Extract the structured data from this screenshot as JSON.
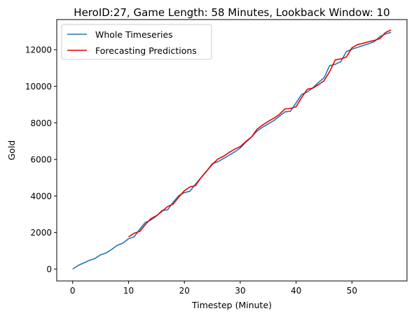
{
  "chart_data": {
    "type": "line",
    "title": "HeroID:27, Game Length: 58 Minutes, Lookback Window: 10",
    "xlabel": "Timestep (Minute)",
    "ylabel": "Gold",
    "xlim": [
      -2.85,
      59.85
    ],
    "ylim": [
      -650,
      13650
    ],
    "xticks": [
      0,
      10,
      20,
      30,
      40,
      50
    ],
    "yticks": [
      0,
      2000,
      4000,
      6000,
      8000,
      10000,
      12000
    ],
    "grid": false,
    "legend_position": "top-left",
    "series": [
      {
        "name": "Whole Timeseries",
        "color": "#1f77b4",
        "x": [
          0,
          1,
          2,
          3,
          4,
          5,
          6,
          7,
          8,
          9,
          10,
          11,
          12,
          13,
          14,
          15,
          16,
          17,
          18,
          19,
          20,
          21,
          22,
          23,
          24,
          25,
          26,
          27,
          28,
          29,
          30,
          31,
          32,
          33,
          34,
          35,
          36,
          37,
          38,
          39,
          40,
          41,
          42,
          43,
          44,
          45,
          46,
          47,
          48,
          49,
          50,
          51,
          52,
          53,
          54,
          55,
          56,
          57
        ],
        "values": [
          0,
          200,
          340,
          480,
          580,
          780,
          880,
          1080,
          1300,
          1420,
          1660,
          1760,
          2180,
          2550,
          2680,
          2900,
          3210,
          3240,
          3660,
          4020,
          4180,
          4260,
          4650,
          5010,
          5360,
          5770,
          5870,
          6050,
          6230,
          6410,
          6620,
          6940,
          7220,
          7550,
          7760,
          7940,
          8120,
          8360,
          8600,
          8640,
          9090,
          9560,
          9690,
          9920,
          10210,
          10460,
          11130,
          11200,
          11350,
          11900,
          12030,
          12130,
          12230,
          12330,
          12440,
          12720,
          12860,
          12950
        ]
      },
      {
        "name": "Forecasting Predictions",
        "color": "#e50000",
        "x": [
          10,
          11,
          12,
          13,
          14,
          15,
          16,
          17,
          18,
          19,
          20,
          21,
          22,
          23,
          24,
          25,
          26,
          27,
          28,
          29,
          30,
          31,
          32,
          33,
          34,
          35,
          36,
          37,
          38,
          39,
          40,
          41,
          42,
          43,
          44,
          45,
          46,
          47,
          48,
          49,
          50,
          51,
          52,
          53,
          54,
          55,
          56,
          57
        ],
        "values": [
          1760,
          1960,
          2060,
          2430,
          2760,
          2920,
          3160,
          3420,
          3560,
          3940,
          4290,
          4490,
          4570,
          5010,
          5370,
          5730,
          6020,
          6170,
          6380,
          6560,
          6700,
          6980,
          7220,
          7650,
          7880,
          8080,
          8250,
          8460,
          8760,
          8790,
          8880,
          9390,
          9840,
          9900,
          10090,
          10300,
          10800,
          11440,
          11500,
          11600,
          12110,
          12280,
          12350,
          12440,
          12510,
          12610,
          12940,
          13080
        ]
      }
    ]
  }
}
